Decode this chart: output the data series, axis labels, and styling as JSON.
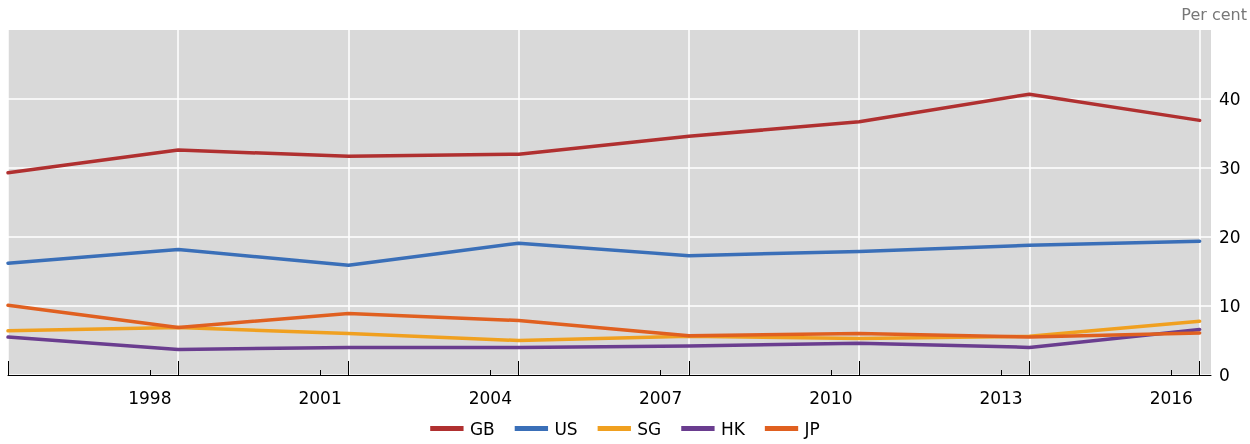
{
  "chart_data": {
    "type": "line",
    "ylabel": "Per cent",
    "x": [
      1995.5,
      1998.5,
      2001.5,
      2004.5,
      2007.5,
      2010.5,
      2013.5,
      2016.5
    ],
    "series": [
      {
        "name": "GB",
        "color": "#b03030",
        "values": [
          29.3,
          32.6,
          31.7,
          32.0,
          34.6,
          36.7,
          40.7,
          36.9
        ]
      },
      {
        "name": "US",
        "color": "#3a6fb8",
        "values": [
          16.2,
          18.2,
          15.9,
          19.1,
          17.3,
          17.9,
          18.8,
          19.4
        ]
      },
      {
        "name": "SG",
        "color": "#f0a020",
        "values": [
          6.4,
          6.9,
          6.0,
          5.0,
          5.6,
          5.3,
          5.6,
          7.8
        ]
      },
      {
        "name": "HK",
        "color": "#6a3d8f",
        "values": [
          5.5,
          3.7,
          4.0,
          4.0,
          4.2,
          4.6,
          4.0,
          6.6
        ]
      },
      {
        "name": "JP",
        "color": "#e06020",
        "values": [
          10.1,
          6.9,
          8.9,
          7.9,
          5.7,
          6.0,
          5.5,
          6.1
        ]
      }
    ],
    "xlim": [
      1995.5,
      2016.7
    ],
    "xticks": [
      {
        "value": 1995.5,
        "label": null
      },
      1998,
      {
        "value": 1998.5,
        "label": null
      },
      2001,
      {
        "value": 2001.5,
        "label": null
      },
      2004,
      {
        "value": 2004.5,
        "label": null
      },
      2007,
      {
        "value": 2007.5,
        "label": null
      },
      2010,
      {
        "value": 2010.5,
        "label": null
      },
      2013,
      {
        "value": 2013.5,
        "label": null
      },
      2016,
      {
        "value": 2016.5,
        "label": null
      }
    ],
    "ylim": [
      0,
      50
    ],
    "yticks": [
      0,
      10,
      20,
      30,
      40
    ],
    "grid": true,
    "legend": "bottom",
    "marker": "none",
    "line_style": "solid"
  }
}
